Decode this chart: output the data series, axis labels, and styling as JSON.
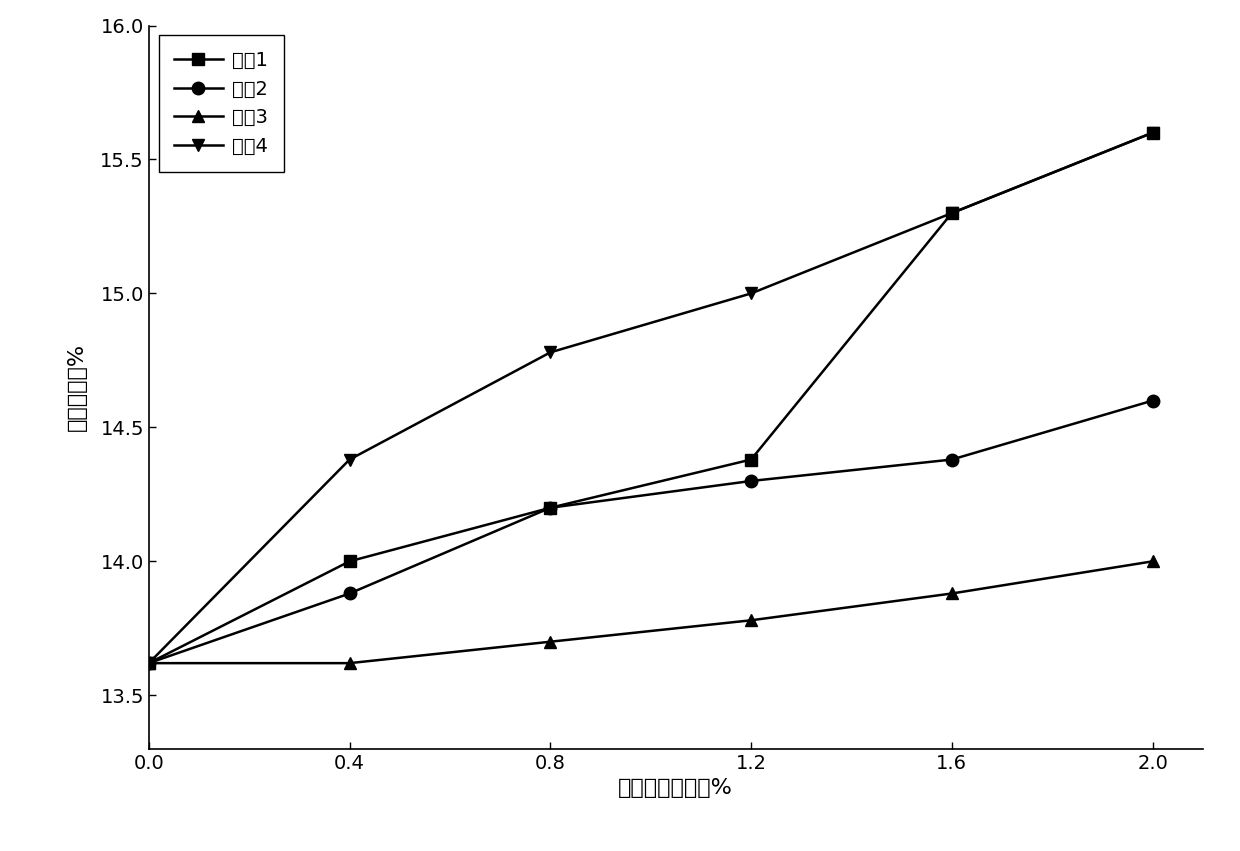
{
  "x": [
    0.0,
    0.4,
    0.8,
    1.2,
    1.6,
    2.0
  ],
  "series": [
    {
      "label": "配兢1",
      "values": [
        13.62,
        14.0,
        14.2,
        14.38,
        15.3,
        15.6
      ],
      "marker": "s",
      "color": "#000000"
    },
    {
      "label": "配兢2",
      "values": [
        13.62,
        13.88,
        14.2,
        14.3,
        14.38,
        14.6
      ],
      "marker": "o",
      "color": "#000000"
    },
    {
      "label": "配兢3",
      "values": [
        13.62,
        13.62,
        13.7,
        13.78,
        13.88,
        14.0
      ],
      "marker": "^",
      "color": "#000000"
    },
    {
      "label": "配兢4",
      "values": [
        13.62,
        14.38,
        14.78,
        15.0,
        15.3,
        15.6
      ],
      "marker": "v",
      "color": "#000000"
    }
  ],
  "xlabel": "混合气体加入量%",
  "ylabel": "最小氧浓度%",
  "xlim": [
    0.0,
    2.1
  ],
  "ylim": [
    13.3,
    16.0
  ],
  "yticks": [
    13.5,
    14.0,
    14.5,
    15.0,
    15.5,
    16.0
  ],
  "xticks": [
    0.0,
    0.4,
    0.8,
    1.2,
    1.6,
    2.0
  ],
  "legend_loc": "upper left",
  "figsize": [
    12.4,
    8.51
  ],
  "dpi": 100
}
